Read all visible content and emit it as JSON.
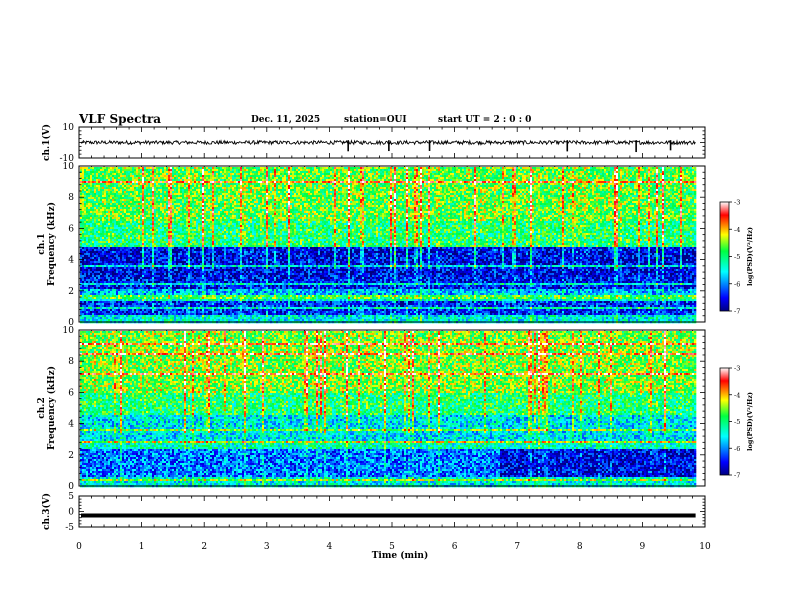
{
  "header": {
    "title": "VLF Spectra",
    "date": "Dec. 11, 2025",
    "station": "station=OUI",
    "start_ut": "start  UT  =   2  : 0   : 0"
  },
  "chart_data": [
    {
      "type": "line",
      "panel": "ch1-waveform",
      "ylabel": "ch.1(V)",
      "ylim": [
        -10,
        10
      ],
      "yticks": [
        "10",
        "-10"
      ],
      "xlim": [
        0,
        10
      ],
      "description_values": {
        "baseline_V": 0,
        "noise_amplitude_V": 1.2
      },
      "spikes_min": [
        4.3,
        4.95,
        5.6,
        7.8,
        8.9,
        9.45
      ],
      "color": "#000000"
    },
    {
      "type": "heatmap",
      "panel": "ch1-spectrogram",
      "ylabel_top": "ch.1",
      "ylabel": "Frequency (kHz)",
      "ylim": [
        0,
        10
      ],
      "yticks": [
        "0",
        "2",
        "4",
        "6",
        "8",
        "10"
      ],
      "xlim": [
        0,
        9.85
      ],
      "bands": [
        {
          "f_low": 0,
          "f_high": 0.5,
          "level": -5.5
        },
        {
          "f_low": 0.5,
          "f_high": 1.5,
          "level": -6.4
        },
        {
          "f_low": 1.5,
          "f_high": 2.2,
          "level": -5.8
        },
        {
          "f_low": 2.2,
          "f_high": 3.0,
          "level": -6.5
        },
        {
          "f_low": 3.0,
          "f_high": 4.9,
          "level": -6.6
        },
        {
          "f_low": 4.9,
          "f_high": 6.5,
          "level": -5.0
        },
        {
          "f_low": 6.5,
          "f_high": 10.0,
          "level": -4.7
        }
      ],
      "colorbar": {
        "label": "log(PSD)(V²/Hz)",
        "ticks": [
          "-3",
          "-4",
          "-5",
          "-6",
          "-7"
        ],
        "range": [
          -7,
          -3
        ]
      }
    },
    {
      "type": "heatmap",
      "panel": "ch2-spectrogram",
      "ylabel_top": "ch.2",
      "ylabel": "Frequency (kHz)",
      "ylim": [
        0,
        10
      ],
      "yticks": [
        "0",
        "2",
        "4",
        "6",
        "8",
        "10"
      ],
      "xlim": [
        0,
        9.85
      ],
      "bands": [
        {
          "f_low": 0,
          "f_high": 0.6,
          "level": -5.5
        },
        {
          "f_low": 0.6,
          "f_high": 2.4,
          "level": -6.1
        },
        {
          "f_low": 2.4,
          "f_high": 3.0,
          "level": -5.3
        },
        {
          "f_low": 3.0,
          "f_high": 4.6,
          "level": -5.6
        },
        {
          "f_low": 4.6,
          "f_high": 6.0,
          "level": -5.0
        },
        {
          "f_low": 6.0,
          "f_high": 10.0,
          "level": -4.6
        }
      ],
      "colorbar": {
        "label": "log(PSD)(V²/Hz)",
        "ticks": [
          "-3",
          "-4",
          "-5",
          "-6",
          "-7"
        ],
        "range": [
          -7,
          -3
        ]
      }
    },
    {
      "type": "line",
      "panel": "ch3-waveform",
      "ylabel": "ch.3(V)",
      "ylim": [
        -5,
        5
      ],
      "yticks": [
        "5",
        "0",
        "-5"
      ],
      "xlim": [
        0,
        10
      ],
      "values": {
        "level_V": 0
      },
      "color": "#000000"
    }
  ],
  "x_axis": {
    "label": "Time (min)",
    "ticks": [
      "0",
      "1",
      "2",
      "3",
      "4",
      "5",
      "6",
      "7",
      "8",
      "9",
      "10"
    ]
  }
}
